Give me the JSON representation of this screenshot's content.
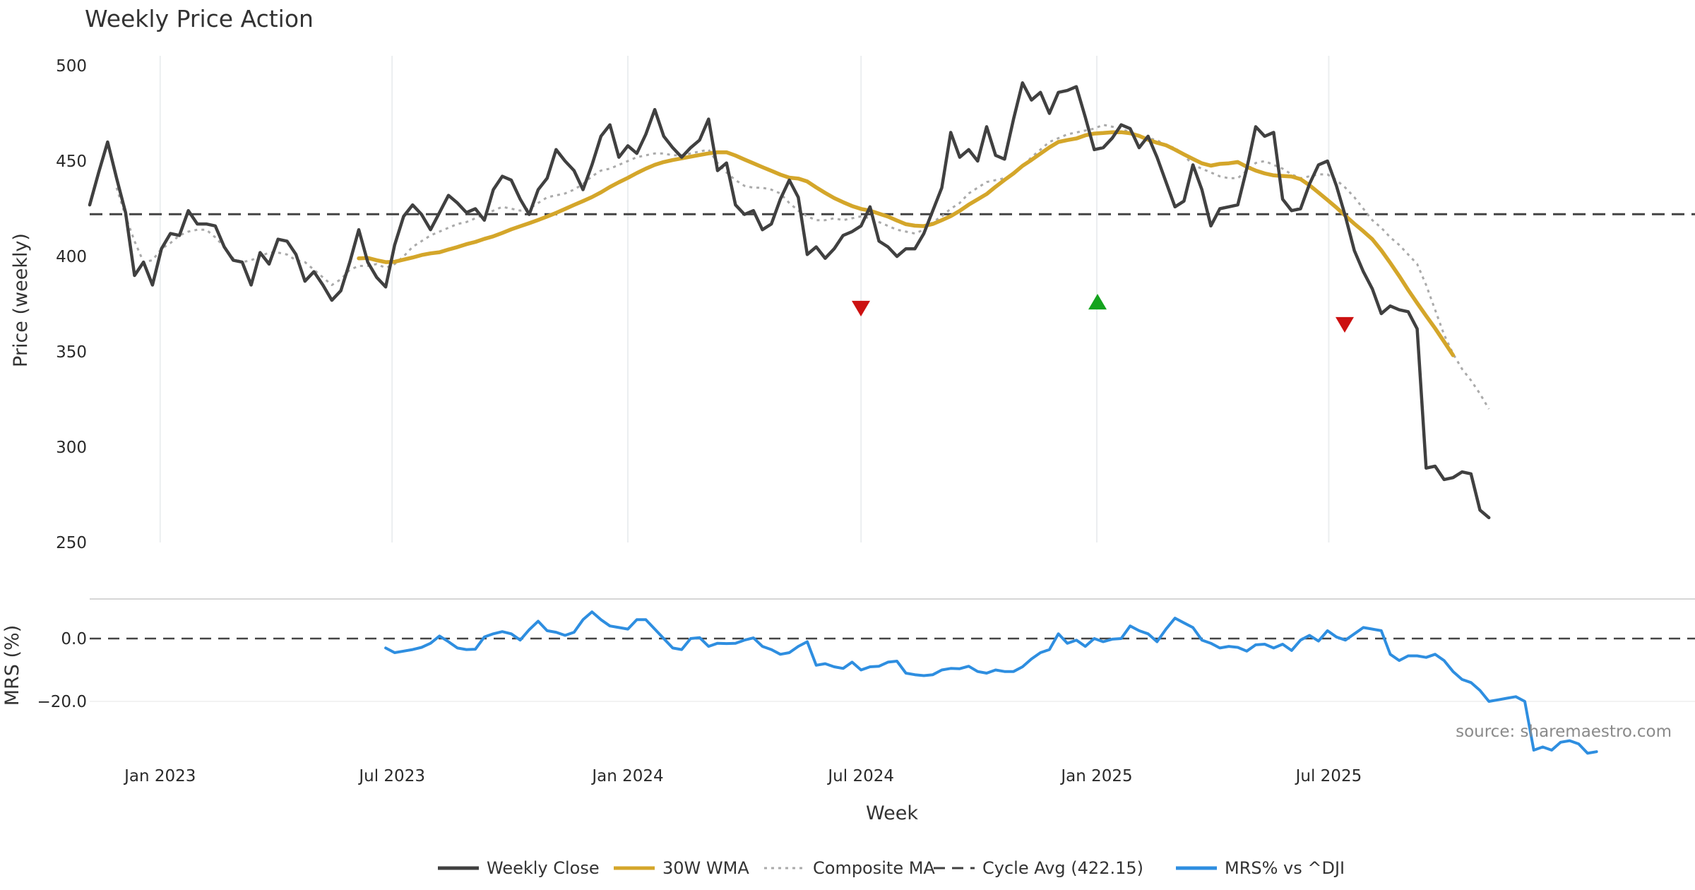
{
  "chart_data": {
    "type": "line",
    "title": "Weekly Price Action",
    "xlabel": "Week",
    "source": "source: sharemaestro.com",
    "x_ticks": [
      "Jan 2023",
      "Jul 2023",
      "Jan 2024",
      "Jul 2024",
      "Jan 2025",
      "Jul 2025"
    ],
    "start_week": "2022-11-07",
    "price_panel": {
      "ylabel": "Price (weekly)",
      "ylim": [
        250,
        500
      ],
      "yticks": [
        "500",
        "450",
        "400",
        "350",
        "300",
        "250"
      ],
      "cycle_avg": 422.15
    },
    "mrs_panel": {
      "ylabel": "MRS (%)",
      "yticks": [
        "0.0",
        "−20.0"
      ]
    },
    "series": [
      {
        "name": "Weekly Close",
        "color": "#404040",
        "style": "solid",
        "start_index": 0,
        "values": [
          427,
          444,
          460,
          441,
          423,
          390,
          397,
          385,
          404,
          412,
          411,
          424,
          417,
          417,
          416,
          405,
          398,
          397,
          385,
          402,
          396,
          409,
          408,
          401,
          387,
          392,
          385,
          377,
          382,
          397,
          414,
          397,
          389,
          384,
          406,
          421,
          427,
          422,
          414,
          423,
          432,
          428,
          423,
          425,
          419,
          435,
          442,
          440,
          430,
          422,
          435,
          441,
          456,
          450,
          445,
          435,
          448,
          463,
          469,
          452,
          458,
          454,
          464,
          477,
          463,
          457,
          452,
          457,
          461,
          472,
          445,
          449,
          427,
          422,
          424,
          414,
          417,
          430,
          440,
          431,
          401,
          405,
          399,
          404,
          411,
          413,
          416,
          426,
          408,
          405,
          400,
          404,
          404,
          412,
          424,
          436,
          465,
          452,
          456,
          450,
          468,
          453,
          451,
          472,
          491,
          482,
          486,
          475,
          486,
          487,
          489,
          473,
          456,
          457,
          462,
          469,
          467,
          457,
          463,
          452,
          439,
          426,
          429,
          448,
          435,
          416,
          425,
          426,
          427,
          446,
          468,
          463,
          465,
          430,
          424,
          425,
          438,
          448,
          450,
          437,
          421,
          403,
          392,
          383,
          370,
          374,
          372,
          371,
          362,
          289,
          290,
          283,
          284,
          287,
          286,
          267,
          263
        ]
      },
      {
        "name": "30W WMA",
        "color": "#d4a62a",
        "style": "solid",
        "start_index": 30,
        "values": [
          399.0,
          399.2,
          398.0,
          397.0,
          397.2,
          398.3,
          399.4,
          400.7,
          401.6,
          402.2,
          403.6,
          404.9,
          406.4,
          407.6,
          409.2,
          410.5,
          412.3,
          414.2,
          415.8,
          417.4,
          419.1,
          420.9,
          422.8,
          424.9,
          427.0,
          429.0,
          431.1,
          433.6,
          436.4,
          438.9,
          441.2,
          443.7,
          446.0,
          448.0,
          449.5,
          450.5,
          451.4,
          452.3,
          453.2,
          454.0,
          454.6,
          454.6,
          452.9,
          450.8,
          448.8,
          446.8,
          444.9,
          442.9,
          441.3,
          440.8,
          439.3,
          436.2,
          433.3,
          430.6,
          428.4,
          426.4,
          424.9,
          424.0,
          422.4,
          420.9,
          418.8,
          416.9,
          416.1,
          415.9,
          417.0,
          419.0,
          421.1,
          423.9,
          427.1,
          429.9,
          432.7,
          436.5,
          440.1,
          443.5,
          447.5,
          450.6,
          453.9,
          457.2,
          460.0,
          461.0,
          461.8,
          463.5,
          464.4,
          464.7,
          465.1,
          465.1,
          464.6,
          463.2,
          461.2,
          459.6,
          458.3,
          456.0,
          453.5,
          451.1,
          448.8,
          447.6,
          448.5,
          448.8,
          449.5,
          447.0,
          445.0,
          443.5,
          442.5,
          442.2,
          441.9,
          440.5,
          437.3,
          433.5,
          429.6,
          425.6,
          421.3,
          417.1,
          413.2,
          409.0,
          403.2,
          396.6,
          389.7,
          382.4,
          375.5,
          368.8,
          362.3,
          355.3,
          348.2
        ]
      },
      {
        "name": "Composite MA",
        "color": "#aaaaaa",
        "style": "dotted",
        "start_index": 3,
        "values": [
          436,
          421,
          408,
          397,
          398,
          404,
          407,
          411,
          413,
          414,
          414,
          410,
          405,
          399,
          397,
          398,
          400,
          402,
          402,
          401,
          398,
          397,
          393,
          389,
          385,
          388,
          393,
          395,
          395,
          396,
          394,
          396,
          400,
          405,
          408,
          411,
          413,
          415,
          417,
          418,
          420,
          422,
          424,
          426,
          425,
          424,
          425,
          428,
          431,
          432,
          433,
          435,
          438,
          442,
          445,
          446,
          448,
          450,
          452,
          453,
          454,
          454,
          453,
          453,
          454,
          455,
          456,
          449,
          444,
          440,
          437,
          436,
          436,
          435,
          433,
          428,
          424,
          421,
          419,
          419,
          420,
          419,
          420,
          421,
          420,
          418,
          416,
          414,
          413,
          412,
          414,
          418,
          421,
          425,
          428,
          433,
          436,
          439,
          440,
          441,
          443,
          447,
          452,
          456,
          460,
          462,
          464,
          465,
          466,
          467,
          469,
          468,
          467,
          465,
          463,
          462,
          461,
          458,
          457,
          453,
          448,
          446,
          444,
          442,
          441,
          441,
          445,
          449,
          450,
          448,
          446,
          443,
          441,
          442,
          443,
          443,
          440,
          436,
          431,
          425,
          419,
          415,
          410,
          406,
          401,
          396,
          385,
          372,
          359,
          349,
          341,
          335,
          328,
          320
        ]
      },
      {
        "name": "Cycle Avg (422.15)",
        "color": "#404040",
        "style": "dashed"
      },
      {
        "name": "MRS% vs ^DJI",
        "color": "#2e8ee0",
        "style": "solid",
        "start_index": 33,
        "values": [
          -3.0,
          -4.5,
          -4.0,
          -3.5,
          -2.8,
          -1.5,
          0.8,
          -1.0,
          -3.0,
          -3.5,
          -3.4,
          0.5,
          1.5,
          2.2,
          1.5,
          -0.5,
          2.8,
          5.5,
          2.5,
          2.0,
          1.0,
          2.0,
          6.0,
          8.5,
          6.0,
          4.0,
          3.5,
          3.0,
          6.0,
          6.0,
          3.0,
          0.0,
          -3.0,
          -3.5,
          0.0,
          0.3,
          -2.5,
          -1.5,
          -1.6,
          -1.5,
          -0.5,
          0.2,
          -2.5,
          -3.5,
          -5.0,
          -4.5,
          -2.5,
          -1.0,
          -8.5,
          -8.0,
          -9.0,
          -9.5,
          -7.5,
          -10.0,
          -9.0,
          -8.8,
          -7.5,
          -7.2,
          -11.0,
          -11.5,
          -11.8,
          -11.5,
          -10.0,
          -9.5,
          -9.6,
          -8.8,
          -10.5,
          -11.0,
          -10.0,
          -10.5,
          -10.5,
          -9.0,
          -6.5,
          -4.5,
          -3.5,
          1.5,
          -1.5,
          -0.5,
          -2.5,
          0.0,
          -1.0,
          -0.2,
          0.0,
          4.0,
          2.5,
          1.5,
          -1.0,
          3.0,
          6.5,
          5.0,
          3.5,
          -0.5,
          -1.5,
          -3.0,
          -2.5,
          -2.8,
          -4.0,
          -2.0,
          -1.8,
          -3.0,
          -1.8,
          -3.8,
          -0.5,
          1.0,
          -0.8,
          2.5,
          0.5,
          -0.5,
          1.5,
          3.5,
          3.0,
          2.5,
          -5.0,
          -7.0,
          -5.5,
          -5.5,
          -6.0,
          -5.0,
          -7.0,
          -10.5,
          -13.0,
          -14.0,
          -16.5,
          -20.0,
          -19.5,
          -19.0,
          -18.5,
          -20.0,
          -35.5,
          -34.5,
          -35.5,
          -33.0,
          -32.5,
          -33.5,
          -36.5,
          -36.0
        ]
      }
    ]
  }
}
